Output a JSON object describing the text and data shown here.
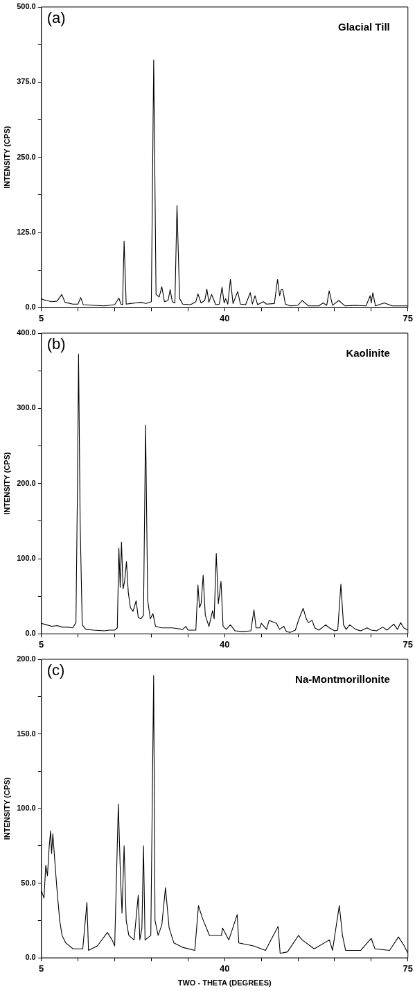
{
  "chart_data": [
    {
      "type": "line",
      "title": "Glacial Till",
      "annotations": [
        "(a)"
      ],
      "ylabel": "INTENSITY (CPS)",
      "color": "#000000",
      "grid": false,
      "legend": false,
      "marker": "none",
      "line_style": "solid",
      "x": [
        5,
        5.5,
        6,
        7,
        8,
        8.9,
        9.5,
        11,
        12,
        12.5,
        13,
        15,
        17,
        19,
        19.8,
        20.2,
        20.5,
        20.8,
        21.2,
        22,
        23,
        24,
        25,
        26,
        26.45,
        26.9,
        27.5,
        28,
        28.5,
        29.2,
        29.6,
        30,
        30.5,
        30.9,
        31.4,
        32,
        33.5,
        34.5,
        34.9,
        35.5,
        36.2,
        36.6,
        37,
        37.5,
        38.3,
        39,
        39.5,
        39.9,
        40.2,
        40.6,
        41.1,
        41.6,
        42.5,
        43,
        44,
        44.9,
        45.3,
        45.8,
        46.3,
        47.4,
        48,
        49.5,
        50.1,
        50.5,
        50.8,
        51.1,
        51.6,
        52.5,
        54,
        54.8,
        56,
        58,
        58.8,
        59.5,
        59.96,
        60.6,
        61.8,
        63,
        65,
        67,
        67.8,
        68,
        68.3,
        68.8,
        70.5,
        72,
        75
      ],
      "values": [
        15,
        13,
        12,
        10,
        11,
        22,
        9,
        6,
        6,
        17,
        5,
        4,
        3,
        5,
        16,
        6,
        5,
        111,
        6,
        7,
        8,
        9,
        7,
        10,
        412,
        22,
        18,
        35,
        10,
        12,
        30,
        10,
        8,
        170,
        15,
        6,
        5,
        10,
        23,
        8,
        12,
        31,
        9,
        22,
        5,
        6,
        34,
        8,
        15,
        6,
        47,
        7,
        27,
        6,
        5,
        25,
        6,
        20,
        5,
        10,
        6,
        7,
        47,
        20,
        30,
        30,
        6,
        3,
        4,
        12,
        3,
        3,
        8,
        4,
        28,
        4,
        12,
        3,
        4,
        3,
        20,
        8,
        25,
        3,
        8,
        3,
        3
      ],
      "xlim": [
        5,
        75
      ],
      "xticks": [
        5,
        {
          "value": 12,
          "label": null
        },
        {
          "value": 19,
          "label": null
        },
        {
          "value": 26,
          "label": null
        },
        {
          "value": 33,
          "label": null
        },
        40,
        {
          "value": 47,
          "label": null
        },
        {
          "value": 54,
          "label": null
        },
        {
          "value": 61,
          "label": null
        },
        {
          "value": 68,
          "label": null
        },
        75
      ],
      "ylim": [
        0,
        500
      ],
      "yticks": [
        {
          "value": 0,
          "label": "0.0"
        },
        {
          "value": 62.5,
          "label": null
        },
        {
          "value": 125,
          "label": "125.0"
        },
        {
          "value": 187.5,
          "label": null
        },
        {
          "value": 250,
          "label": "250.0"
        },
        {
          "value": 312.5,
          "label": null
        },
        {
          "value": 375,
          "label": "375.0"
        },
        {
          "value": 437.5,
          "label": null
        },
        {
          "value": 500,
          "label": "500.0"
        }
      ]
    },
    {
      "type": "line",
      "title": "Kaolinite",
      "annotations": [
        "(b)"
      ],
      "ylabel": "INTENSITY (CPS)",
      "color": "#000000",
      "grid": false,
      "legend": false,
      "marker": "none",
      "line_style": "solid",
      "x": [
        5,
        6,
        7,
        8,
        9,
        10,
        11,
        11.6,
        11.9,
        12.1,
        12.4,
        12.8,
        13.5,
        15,
        17,
        18,
        19,
        19.5,
        19.8,
        20.05,
        20.3,
        20.6,
        20.9,
        21.25,
        21.6,
        22,
        22.5,
        23.1,
        23.5,
        24,
        24.5,
        24.9,
        25.3,
        25.8,
        26.3,
        26.8,
        28,
        30,
        32,
        32.6,
        33,
        34.5,
        34.9,
        35.2,
        35.5,
        35.9,
        36.3,
        37,
        37.7,
        38,
        38.4,
        38.8,
        39.3,
        39.7,
        40.3,
        41.1,
        42,
        43.5,
        45,
        45.6,
        46,
        46.7,
        47,
        48,
        48.5,
        49.9,
        50.5,
        51.3,
        51.8,
        52.5,
        53.5,
        54.2,
        55,
        55.6,
        56,
        56.7,
        57.2,
        58,
        59.3,
        60,
        61,
        61.6,
        62.2,
        62.7,
        63.2,
        63.9,
        65,
        66,
        67.2,
        68,
        69,
        70.2,
        71,
        72.3,
        73,
        73.6,
        74.2,
        75
      ],
      "values": [
        14,
        12,
        10,
        11,
        9,
        9,
        8,
        15,
        200,
        372,
        150,
        12,
        6,
        5,
        4,
        5,
        5,
        8,
        114,
        62,
        122,
        60,
        70,
        96,
        55,
        35,
        30,
        44,
        22,
        20,
        25,
        278,
        45,
        20,
        27,
        10,
        8,
        8,
        6,
        10,
        5,
        5,
        65,
        35,
        40,
        78,
        25,
        10,
        31,
        20,
        107,
        40,
        70,
        10,
        6,
        12,
        4,
        3,
        4,
        32,
        8,
        8,
        14,
        6,
        18,
        14,
        6,
        10,
        3,
        2,
        5,
        20,
        34,
        20,
        15,
        18,
        8,
        5,
        12,
        8,
        4,
        5,
        66,
        12,
        6,
        12,
        6,
        4,
        8,
        5,
        4,
        9,
        5,
        13,
        6,
        15,
        8,
        5
      ],
      "xlim": [
        5,
        75
      ],
      "xticks": [
        5,
        {
          "value": 12,
          "label": null
        },
        {
          "value": 19,
          "label": null
        },
        {
          "value": 26,
          "label": null
        },
        {
          "value": 33,
          "label": null
        },
        40,
        {
          "value": 47,
          "label": null
        },
        {
          "value": 54,
          "label": null
        },
        {
          "value": 61,
          "label": null
        },
        {
          "value": 68,
          "label": null
        },
        75
      ],
      "ylim": [
        0,
        400
      ],
      "yticks": [
        {
          "value": 0,
          "label": "0.0"
        },
        {
          "value": 50,
          "label": null
        },
        {
          "value": 100,
          "label": "100.0"
        },
        {
          "value": 150,
          "label": null
        },
        {
          "value": 200,
          "label": "200.0"
        },
        {
          "value": 250,
          "label": null
        },
        {
          "value": 300,
          "label": "300.0"
        },
        {
          "value": 350,
          "label": null
        },
        {
          "value": 400,
          "label": "400.0"
        }
      ]
    },
    {
      "type": "line",
      "title": "Na-Montmorillonite",
      "annotations": [
        "(c)"
      ],
      "ylabel": "INTENSITY (CPS)",
      "xlabel": "TWO - THETA (DEGREES)",
      "color": "#000000",
      "grid": false,
      "legend": false,
      "marker": "none",
      "line_style": "solid",
      "x": [
        5,
        5.5,
        5.84,
        6.16,
        6.5,
        6.77,
        6.95,
        7.19,
        7.56,
        8,
        8.5,
        8.95,
        9.65,
        11.05,
        12.9,
        13.7,
        14,
        15.7,
        17.6,
        18.5,
        19,
        19.7,
        20.1,
        20.4,
        20.8,
        21.2,
        21.7,
        22.7,
        23.5,
        23.8,
        24.2,
        24.5,
        24.8,
        25.9,
        26.44,
        26.7,
        27.3,
        28,
        28.7,
        29.4,
        30.3,
        32,
        34.3,
        35,
        35.7,
        37.1,
        39.4,
        39.6,
        40.8,
        42.4,
        42.7,
        45.5,
        47.8,
        50.2,
        50.6,
        52,
        54.1,
        54.8,
        57.1,
        60,
        60.6,
        61.9,
        62.5,
        63.1,
        66,
        68,
        68.7,
        71.5,
        73.2,
        74.3,
        75
      ],
      "values": [
        45,
        40,
        62,
        55,
        75,
        85,
        70,
        83,
        65,
        45,
        25,
        15,
        10,
        6,
        6,
        37,
        5,
        8,
        17,
        12,
        8,
        103,
        55,
        30,
        75,
        25,
        15,
        12,
        42,
        12,
        20,
        75,
        12,
        15,
        189,
        25,
        15,
        22,
        47,
        20,
        10,
        7,
        5,
        35,
        27,
        15,
        15,
        20,
        12,
        29,
        10,
        8,
        5,
        21,
        3,
        4,
        15,
        12,
        6,
        12,
        5,
        35,
        15,
        5,
        5,
        13,
        6,
        5,
        14,
        8,
        3
      ],
      "xlim": [
        5,
        75
      ],
      "xticks": [
        5,
        {
          "value": 12,
          "label": null
        },
        {
          "value": 19,
          "label": null
        },
        {
          "value": 26,
          "label": null
        },
        {
          "value": 33,
          "label": null
        },
        40,
        {
          "value": 47,
          "label": null
        },
        {
          "value": 54,
          "label": null
        },
        {
          "value": 61,
          "label": null
        },
        {
          "value": 68,
          "label": null
        },
        75
      ],
      "ylim": [
        0,
        200
      ],
      "yticks": [
        {
          "value": 0,
          "label": "0.0"
        },
        {
          "value": 25,
          "label": null
        },
        {
          "value": 50,
          "label": "50.0"
        },
        {
          "value": 75,
          "label": null
        },
        {
          "value": 100,
          "label": "100.0"
        },
        {
          "value": 125,
          "label": null
        },
        {
          "value": 150,
          "label": "150.0"
        },
        {
          "value": 175,
          "label": null
        },
        {
          "value": 200,
          "label": "200.0"
        }
      ]
    }
  ]
}
